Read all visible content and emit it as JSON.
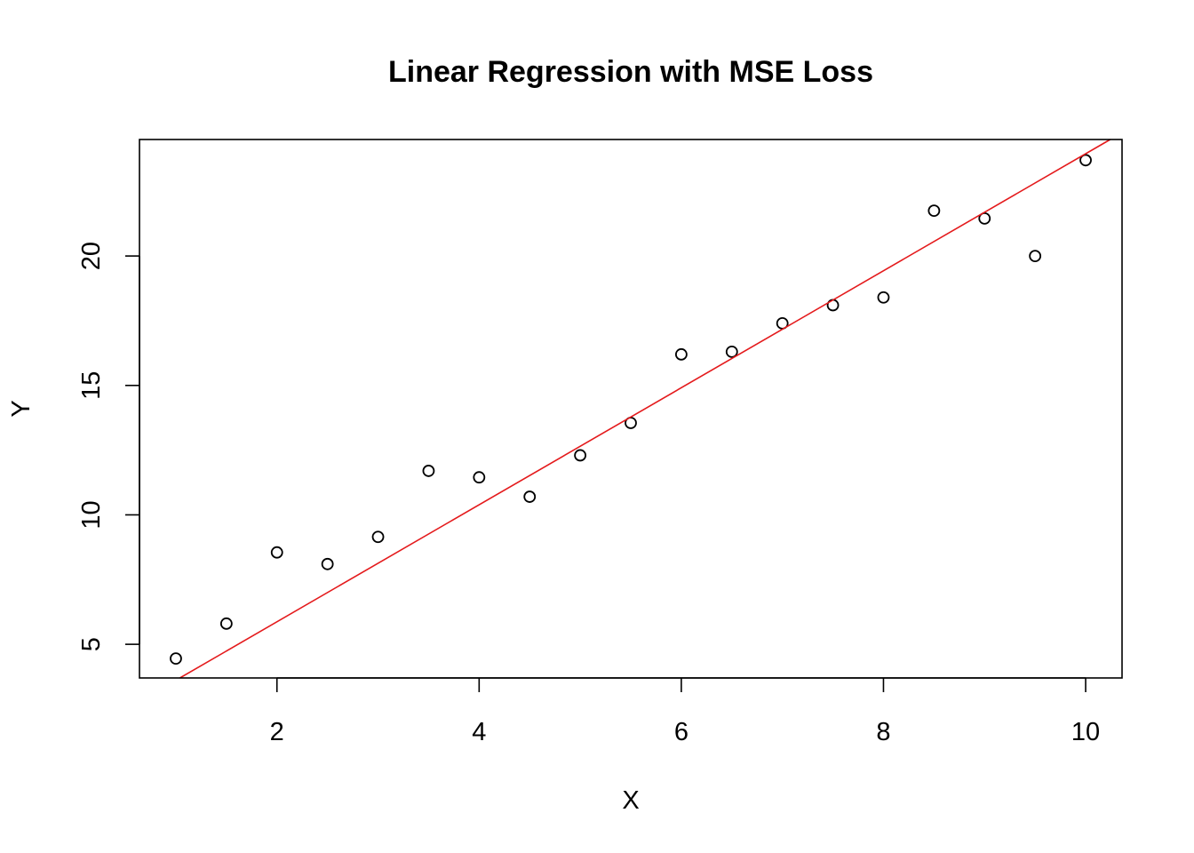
{
  "chart_data": {
    "type": "scatter",
    "title": "Linear Regression with MSE Loss",
    "xlabel": "X",
    "ylabel": "Y",
    "xlim": [
      0.64,
      10.36
    ],
    "ylim": [
      3.7,
      24.5
    ],
    "xticks": [
      2,
      4,
      6,
      8,
      10
    ],
    "yticks": [
      5,
      10,
      15,
      20
    ],
    "grid": false,
    "legend": "none",
    "series": [
      {
        "x": [
          1,
          1.5,
          2,
          2.5,
          3,
          3.5,
          4,
          4.5,
          5,
          5.5,
          6,
          6.5,
          7,
          7.5,
          8,
          8.5,
          9,
          9.5,
          10
        ],
        "y": [
          4.45,
          5.8,
          8.55,
          8.1,
          9.15,
          11.7,
          11.45,
          10.7,
          12.3,
          13.55,
          16.2,
          16.3,
          17.4,
          18.1,
          18.4,
          21.75,
          21.45,
          20.0,
          23.7
        ]
      }
    ],
    "fit_line": {
      "intercept": 1.35,
      "slope": 2.26,
      "color": "#e41a1c"
    }
  }
}
